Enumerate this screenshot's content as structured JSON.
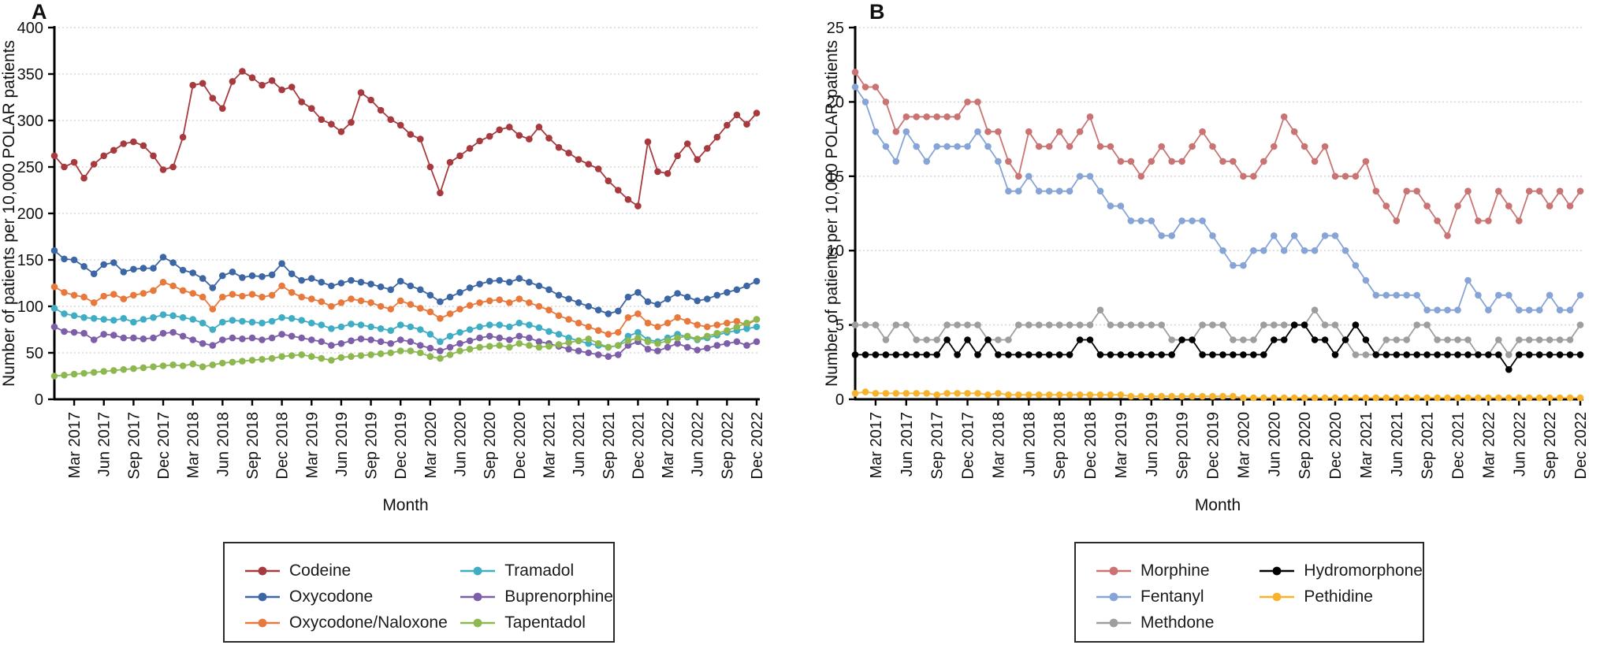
{
  "axis": {
    "xlabel": "Month",
    "ylabel": "Number of patients per 10,000 POLAR patients",
    "xtick_labels": [
      "Mar 2017",
      "Jun 2017",
      "Sep 2017",
      "Dec 2017",
      "Mar 2018",
      "Jun 2018",
      "Sep 2018",
      "Dec 2018",
      "Mar 2019",
      "Jun 2019",
      "Sep 2019",
      "Dec 2019",
      "Mar 2020",
      "Jun 2020",
      "Sep 2020",
      "Dec 2020",
      "Mar 2021",
      "Jun 2021",
      "Sep 2021",
      "Dec 2021",
      "Mar 2022",
      "Jun 2022",
      "Sep 2022",
      "Dec 2022"
    ],
    "xtick_month_indices": [
      2,
      5,
      8,
      11,
      14,
      17,
      20,
      23,
      26,
      29,
      32,
      35,
      38,
      41,
      44,
      47,
      50,
      53,
      56,
      59,
      62,
      65,
      68,
      71
    ]
  },
  "chart_data": [
    {
      "type": "line",
      "panel_label": "A",
      "xlabel": "Month",
      "ylabel": "Number of patients per 10,000 POLAR patients",
      "x_start": "Jan 2017",
      "x_end": "Dec 2022",
      "x_points": 72,
      "ylim": [
        0,
        400
      ],
      "yticks": [
        0,
        50,
        100,
        150,
        200,
        250,
        300,
        350,
        400
      ],
      "grid": "horizontal-dotted",
      "legend_position": "below",
      "legend_columns": [
        [
          "Codeine",
          "Oxycodone",
          "Oxycodone/Naloxone"
        ],
        [
          "Tramadol",
          "Buprenorphine",
          "Tapentadol"
        ]
      ],
      "series": [
        {
          "name": "Codeine",
          "color": "#A63A3E",
          "values": [
            262,
            250,
            255,
            238,
            253,
            262,
            268,
            275,
            277,
            273,
            262,
            247,
            250,
            282,
            338,
            340,
            324,
            313,
            342,
            353,
            346,
            338,
            343,
            333,
            336,
            320,
            313,
            301,
            296,
            288,
            298,
            330,
            322,
            311,
            301,
            295,
            285,
            280,
            250,
            222,
            255,
            262,
            270,
            278,
            283,
            290,
            293,
            284,
            280,
            293,
            281,
            271,
            265,
            258,
            253,
            248,
            235,
            225,
            215,
            208,
            277,
            245,
            243,
            262,
            275,
            258,
            270,
            282,
            295,
            306,
            296,
            308
          ]
        },
        {
          "name": "Oxycodone",
          "color": "#3D66A4",
          "values": [
            160,
            151,
            150,
            143,
            135,
            145,
            147,
            137,
            140,
            141,
            141,
            153,
            147,
            139,
            136,
            130,
            120,
            133,
            137,
            131,
            133,
            132,
            134,
            146,
            135,
            128,
            130,
            126,
            122,
            125,
            128,
            126,
            124,
            121,
            118,
            127,
            122,
            118,
            112,
            105,
            110,
            115,
            120,
            124,
            127,
            128,
            126,
            130,
            126,
            122,
            118,
            112,
            108,
            104,
            100,
            96,
            92,
            95,
            110,
            115,
            105,
            102,
            108,
            114,
            110,
            106,
            108,
            112,
            115,
            118,
            122,
            127
          ]
        },
        {
          "name": "Oxycodone/Naloxone",
          "color": "#E8793C",
          "values": [
            121,
            115,
            112,
            110,
            104,
            111,
            113,
            108,
            112,
            114,
            117,
            126,
            122,
            117,
            114,
            110,
            97,
            110,
            113,
            111,
            113,
            110,
            112,
            122,
            115,
            110,
            108,
            105,
            100,
            104,
            108,
            106,
            104,
            100,
            97,
            106,
            102,
            98,
            94,
            87,
            92,
            97,
            101,
            104,
            106,
            107,
            104,
            108,
            104,
            100,
            96,
            90,
            86,
            82,
            78,
            74,
            70,
            72,
            88,
            92,
            82,
            78,
            82,
            88,
            84,
            80,
            78,
            80,
            82,
            84,
            80,
            86
          ]
        },
        {
          "name": "Tramadol",
          "color": "#3FAEC5",
          "values": [
            98,
            92,
            90,
            88,
            87,
            86,
            85,
            87,
            83,
            86,
            88,
            91,
            90,
            88,
            86,
            82,
            75,
            83,
            85,
            84,
            83,
            82,
            84,
            88,
            87,
            85,
            82,
            80,
            76,
            78,
            81,
            80,
            78,
            76,
            74,
            80,
            78,
            75,
            70,
            62,
            68,
            72,
            75,
            78,
            80,
            80,
            78,
            82,
            80,
            77,
            73,
            70,
            66,
            63,
            60,
            58,
            56,
            58,
            68,
            72,
            64,
            62,
            66,
            70,
            67,
            64,
            66,
            69,
            72,
            74,
            76,
            78
          ]
        },
        {
          "name": "Buprenorphine",
          "color": "#7D5EA8",
          "values": [
            78,
            73,
            72,
            71,
            64,
            70,
            69,
            66,
            66,
            65,
            66,
            71,
            72,
            68,
            64,
            60,
            58,
            64,
            66,
            65,
            66,
            64,
            66,
            70,
            68,
            66,
            64,
            62,
            58,
            60,
            63,
            65,
            64,
            62,
            60,
            64,
            62,
            58,
            55,
            52,
            56,
            60,
            63,
            66,
            68,
            66,
            64,
            68,
            66,
            62,
            60,
            57,
            54,
            52,
            50,
            48,
            46,
            48,
            58,
            62,
            54,
            52,
            56,
            60,
            56,
            53,
            55,
            58,
            60,
            62,
            58,
            62
          ]
        },
        {
          "name": "Tapentadol",
          "color": "#8CB84F",
          "values": [
            25,
            26,
            27,
            28,
            29,
            30,
            31,
            32,
            33,
            34,
            35,
            36,
            37,
            36,
            38,
            35,
            37,
            39,
            40,
            41,
            42,
            43,
            44,
            46,
            47,
            48,
            46,
            44,
            42,
            45,
            46,
            47,
            48,
            49,
            50,
            52,
            52,
            50,
            46,
            44,
            48,
            52,
            54,
            56,
            57,
            58,
            56,
            60,
            58,
            56,
            57,
            59,
            61,
            63,
            65,
            60,
            56,
            58,
            63,
            66,
            62,
            60,
            63,
            66,
            68,
            65,
            68,
            71,
            74,
            78,
            82,
            86
          ]
        }
      ]
    },
    {
      "type": "line",
      "panel_label": "B",
      "xlabel": "Month",
      "ylabel": "Number of patients per 10,000 POLAR patients",
      "x_start": "Jan 2017",
      "x_end": "Dec 2022",
      "x_points": 72,
      "ylim": [
        0,
        25
      ],
      "yticks": [
        0,
        5,
        10,
        15,
        20,
        25
      ],
      "grid": "horizontal-dotted",
      "legend_position": "below",
      "legend_columns": [
        [
          "Morphine",
          "Fentanyl",
          "Methdone"
        ],
        [
          "Hydromorphone",
          "Pethidine"
        ]
      ],
      "series": [
        {
          "name": "Morphine",
          "color": "#C97473",
          "values": [
            22,
            21,
            21,
            20,
            18,
            19,
            19,
            19,
            19,
            19,
            19,
            20,
            20,
            18,
            18,
            16,
            15,
            18,
            17,
            17,
            18,
            17,
            18,
            19,
            17,
            17,
            16,
            16,
            15,
            16,
            17,
            16,
            16,
            17,
            18,
            17,
            16,
            16,
            15,
            15,
            16,
            17,
            19,
            18,
            17,
            16,
            17,
            15,
            15,
            15,
            16,
            14,
            13,
            12,
            14,
            14,
            13,
            12,
            11,
            13,
            14,
            12,
            12,
            14,
            13,
            12,
            14,
            14,
            13,
            14,
            13,
            14
          ]
        },
        {
          "name": "Fentanyl",
          "color": "#87A4D6",
          "values": [
            21,
            20,
            18,
            17,
            16,
            18,
            17,
            16,
            17,
            17,
            17,
            17,
            18,
            17,
            16,
            14,
            14,
            15,
            14,
            14,
            14,
            14,
            15,
            15,
            14,
            13,
            13,
            12,
            12,
            12,
            11,
            11,
            12,
            12,
            12,
            11,
            10,
            9,
            9,
            10,
            10,
            11,
            10,
            11,
            10,
            10,
            11,
            11,
            10,
            9,
            8,
            7,
            7,
            7,
            7,
            7,
            6,
            6,
            6,
            6,
            8,
            7,
            6,
            7,
            7,
            6,
            6,
            6,
            7,
            6,
            6,
            7
          ]
        },
        {
          "name": "Methdone",
          "color": "#9E9E9E",
          "values": [
            5,
            5,
            5,
            4,
            5,
            5,
            4,
            4,
            4,
            5,
            5,
            5,
            5,
            4,
            4,
            4,
            5,
            5,
            5,
            5,
            5,
            5,
            5,
            5,
            6,
            5,
            5,
            5,
            5,
            5,
            5,
            4,
            4,
            4,
            5,
            5,
            5,
            4,
            4,
            4,
            5,
            5,
            5,
            5,
            5,
            6,
            5,
            5,
            4,
            3,
            3,
            3,
            4,
            4,
            4,
            5,
            5,
            4,
            4,
            4,
            4,
            3,
            3,
            4,
            3,
            4,
            4,
            4,
            4,
            4,
            4,
            5
          ]
        },
        {
          "name": "Hydromorphone",
          "color": "#000000",
          "values": [
            3,
            3,
            3,
            3,
            3,
            3,
            3,
            3,
            3,
            4,
            3,
            4,
            3,
            4,
            3,
            3,
            3,
            3,
            3,
            3,
            3,
            3,
            4,
            4,
            3,
            3,
            3,
            3,
            3,
            3,
            3,
            3,
            4,
            4,
            3,
            3,
            3,
            3,
            3,
            3,
            3,
            4,
            4,
            5,
            5,
            4,
            4,
            3,
            4,
            5,
            4,
            3,
            3,
            3,
            3,
            3,
            3,
            3,
            3,
            3,
            3,
            3,
            3,
            3,
            2,
            3,
            3,
            3,
            3,
            3,
            3,
            3
          ]
        },
        {
          "name": "Pethidine",
          "color": "#F8B32D",
          "values": [
            0.4,
            0.5,
            0.4,
            0.4,
            0.4,
            0.4,
            0.4,
            0.4,
            0.3,
            0.4,
            0.4,
            0.4,
            0.4,
            0.3,
            0.4,
            0.3,
            0.3,
            0.3,
            0.3,
            0.3,
            0.3,
            0.3,
            0.3,
            0.3,
            0.3,
            0.3,
            0.3,
            0.2,
            0.2,
            0.2,
            0.2,
            0.2,
            0.2,
            0.2,
            0.2,
            0.2,
            0.2,
            0.2,
            0.1,
            0.1,
            0.1,
            0.1,
            0.1,
            0.1,
            0.1,
            0.1,
            0.1,
            0.1,
            0.1,
            0.1,
            0.1,
            0.1,
            0.1,
            0.1,
            0.1,
            0.1,
            0.1,
            0.1,
            0.1,
            0.1,
            0.1,
            0.1,
            0.1,
            0.1,
            0.1,
            0.1,
            0.1,
            0.1,
            0.1,
            0.1,
            0.1,
            0.1
          ]
        }
      ]
    }
  ]
}
